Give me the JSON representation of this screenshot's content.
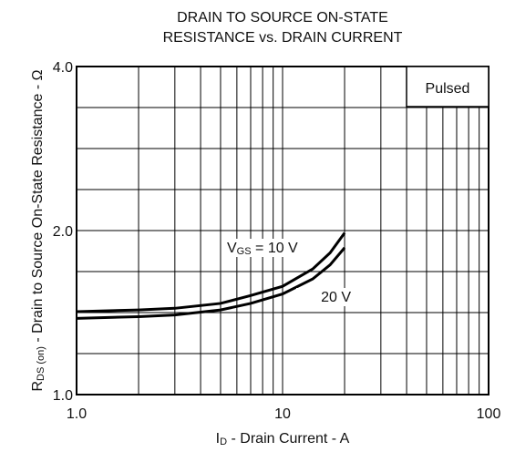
{
  "chart_data": {
    "type": "line",
    "title": [
      "DRAIN TO SOURCE ON-STATE",
      "RESISTANCE vs. DRAIN CURRENT"
    ],
    "xlabel": {
      "main": "I",
      "sub": "D",
      "rest": " - Drain Current - A"
    },
    "ylabel": {
      "main": "R",
      "sub": "DS (on)",
      "rest": " - Drain to Source On-State Resistance - Ω"
    },
    "xlog": true,
    "ylog": true,
    "grid": true,
    "xlim": [
      1,
      100
    ],
    "ylim": [
      1,
      4
    ],
    "xticks": [
      {
        "value": 1,
        "label": "1.0"
      },
      10,
      100
    ],
    "yticks": [
      {
        "value": 1,
        "label": "1.0"
      },
      {
        "value": 2,
        "label": "2.0"
      },
      {
        "value": 4,
        "label": "4.0"
      }
    ],
    "xminor": [
      2,
      3,
      4,
      5,
      6,
      7,
      8,
      9,
      20,
      30,
      40,
      50,
      60,
      70,
      80,
      90
    ],
    "yminor": [
      1.189,
      1.414,
      1.682,
      2.378,
      2.828,
      3.364
    ],
    "note": "Pulsed",
    "x": [
      1,
      2,
      3,
      5,
      7,
      10,
      14,
      17,
      20
    ],
    "series": [
      {
        "label": {
          "main": "V",
          "sub": "GS",
          "rest": " = 10 V"
        },
        "color": "#000000",
        "values": [
          1.42,
          1.43,
          1.44,
          1.47,
          1.52,
          1.58,
          1.7,
          1.82,
          1.98
        ]
      },
      {
        "label": {
          "main": "20 V"
        },
        "color": "#000000",
        "values": [
          1.38,
          1.39,
          1.4,
          1.43,
          1.47,
          1.53,
          1.63,
          1.73,
          1.86
        ]
      }
    ]
  }
}
